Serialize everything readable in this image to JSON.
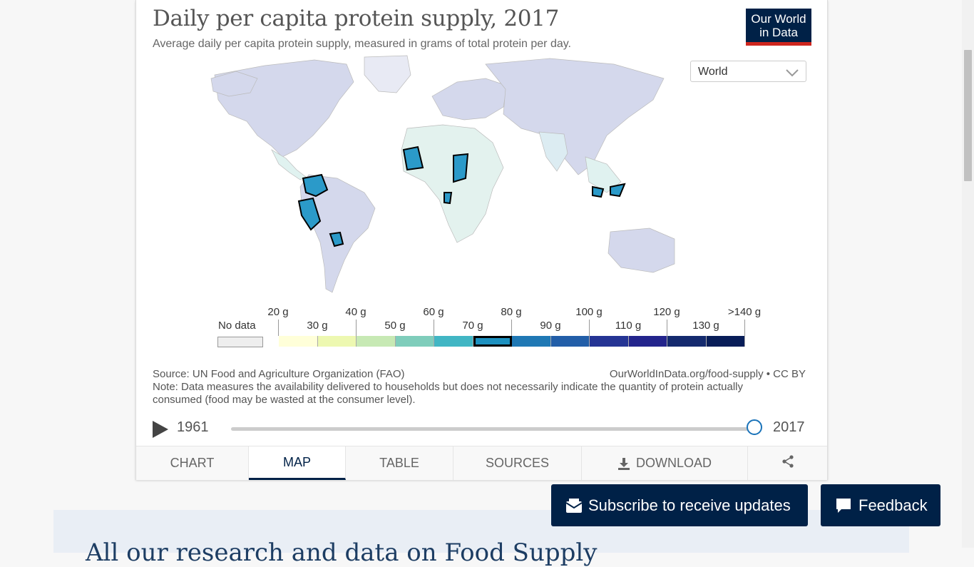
{
  "chart": {
    "title": "Daily per capita protein supply, 2017",
    "subtitle": "Average daily per capita protein supply, measured in grams of total protein per day.",
    "logo": {
      "line1": "Our World",
      "line2": "in Data"
    },
    "region_select": {
      "value": "World",
      "icon": "chevron-down-icon"
    },
    "legend": {
      "no_data_label": "No data",
      "upper_labels": [
        "20 g",
        "40 g",
        "60 g",
        "80 g",
        "100 g",
        "120 g",
        ">140 g"
      ],
      "lower_labels": [
        "30 g",
        "50 g",
        "70 g",
        "90 g",
        "110 g",
        "130 g"
      ],
      "colors": [
        "#ffffd9",
        "#edf8b1",
        "#c7e9b4",
        "#7fcdbb",
        "#41b6c4",
        "#1d91c0",
        "#1f78b4",
        "#225ea8",
        "#253494",
        "#23248c",
        "#142a6e",
        "#081d58"
      ],
      "selected_bin": "70 g – 80 g",
      "selected_color": "#1d91c0",
      "no_data_color": "#eeeeee"
    },
    "source": "Source: UN Food and Agriculture Organization (FAO)",
    "source_link": "OurWorldInData.org/food-supply • CC BY",
    "note": "Note: Data measures the availability delivered to households but does not necessarily indicate the quantity of protein actually consumed (food may be wasted at the consumer level).",
    "timeline": {
      "start_year": "1961",
      "end_year": "2017",
      "position": 1.0
    }
  },
  "tabs": [
    {
      "label": "CHART",
      "active": false
    },
    {
      "label": "MAP",
      "active": true
    },
    {
      "label": "TABLE",
      "active": false
    },
    {
      "label": "SOURCES",
      "active": false
    },
    {
      "label": "DOWNLOAD",
      "active": false,
      "icon": "download-icon"
    },
    {
      "label": "",
      "active": false,
      "icon": "share-icon"
    }
  ],
  "buttons": {
    "subscribe": "Subscribe to receive updates",
    "feedback": "Feedback"
  },
  "below_heading": "All our research and data on Food Supply"
}
